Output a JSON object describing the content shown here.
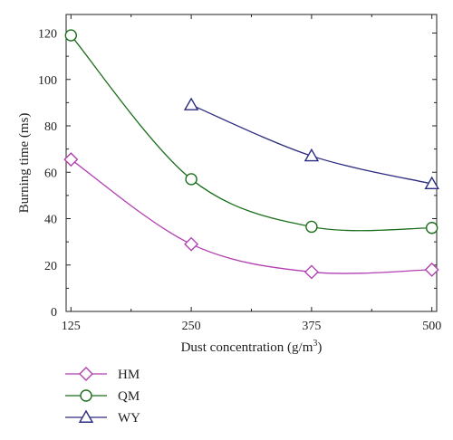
{
  "chart_data": {
    "type": "line",
    "title": "",
    "xlabel": "Dust concentration (g/m",
    "xlabel_sup": "3",
    "xlabel_suffix": ")",
    "ylabel": "Burning time (ms)",
    "xlim": [
      120,
      505
    ],
    "ylim": [
      0,
      128
    ],
    "xticks": [
      125,
      250,
      375,
      500
    ],
    "yticks": [
      0,
      20,
      40,
      60,
      80,
      100,
      120
    ],
    "grid": false,
    "legend_position": "bottom-left, below plot",
    "series": [
      {
        "name": "HM",
        "color": "#b23fb2",
        "marker": "diamond",
        "x": [
          125,
          250,
          375,
          500
        ],
        "y": [
          65.5,
          29,
          17,
          18
        ]
      },
      {
        "name": "QM",
        "color": "#1c6e1c",
        "marker": "circle",
        "x": [
          125,
          250,
          375,
          500
        ],
        "y": [
          119,
          57,
          36.5,
          36
        ]
      },
      {
        "name": "WY",
        "color": "#2b2b7f",
        "marker": "triangle",
        "x": [
          250,
          375,
          500
        ],
        "y": [
          89,
          67,
          55
        ]
      }
    ]
  }
}
